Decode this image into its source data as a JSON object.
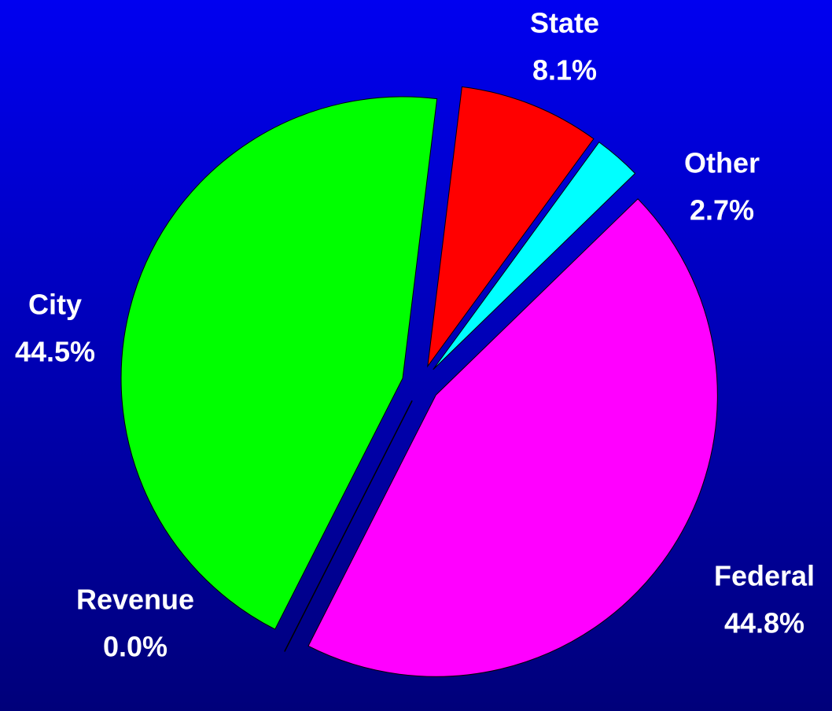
{
  "chart_data": {
    "type": "pie",
    "categories": [
      "State",
      "Other",
      "Federal",
      "Revenue",
      "City"
    ],
    "values": [
      8.1,
      2.7,
      44.8,
      0.0,
      44.5
    ],
    "value_labels": [
      "8.1%",
      "2.7%",
      "44.8%",
      "0.0%",
      "44.5%"
    ],
    "colors": [
      "#ff0000",
      "#00ffff",
      "#ff00ff",
      "#000000",
      "#00ff00"
    ]
  }
}
